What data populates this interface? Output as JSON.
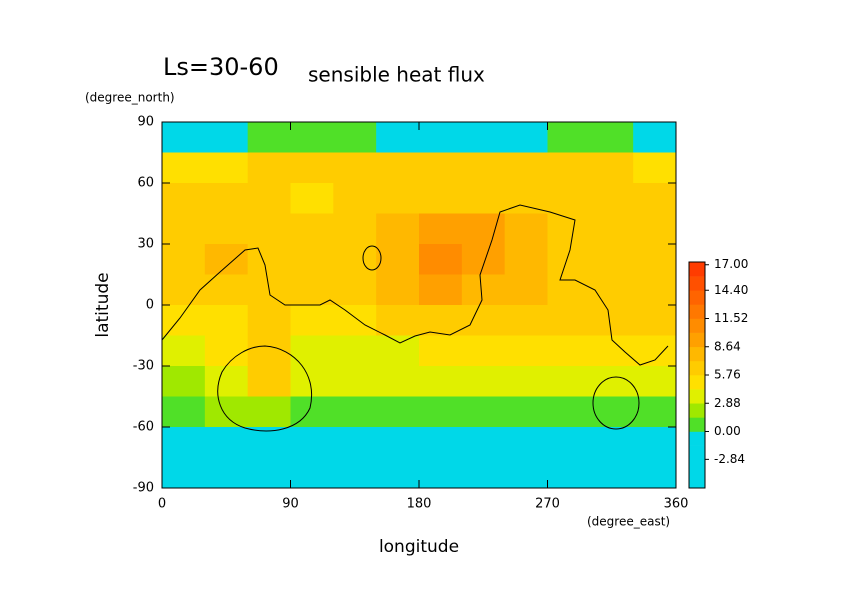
{
  "chart_data": {
    "type": "contour",
    "title": "Ls=30-60",
    "subtitle": "sensible heat flux",
    "ylabel": "latitude",
    "xlabel": "longitude",
    "yunit": "(degree_north)",
    "xunit": "(degree_east)",
    "xlim": [
      0,
      360
    ],
    "xticks": [
      0,
      90,
      180,
      270,
      360
    ],
    "ylim": [
      -90,
      90
    ],
    "yticks": [
      -90,
      -60,
      -30,
      0,
      30,
      60,
      90
    ],
    "x": [
      15,
      45,
      75,
      105,
      135,
      165,
      195,
      225,
      255,
      285,
      315,
      345
    ],
    "y": [
      82.5,
      67.5,
      52.5,
      37.5,
      22.5,
      7.5,
      -7.5,
      -22.5,
      -37.5,
      -52.5,
      -67.5,
      -82.5
    ],
    "z": [
      [
        -1,
        -1,
        1,
        1,
        1,
        -1,
        -1,
        -1,
        -1,
        1,
        1,
        -1
      ],
      [
        5,
        5,
        6,
        6,
        6,
        6,
        6,
        6,
        7,
        7,
        6,
        5
      ],
      [
        6,
        6,
        6,
        5,
        6,
        6,
        6,
        7,
        6,
        6,
        6,
        6
      ],
      [
        7,
        6,
        7,
        6,
        7,
        8,
        9,
        10,
        8,
        7,
        7,
        7
      ],
      [
        7,
        8,
        7,
        6,
        7,
        8,
        11,
        9,
        8,
        7,
        7,
        6
      ],
      [
        6,
        7,
        7,
        6,
        7,
        8,
        9,
        8,
        8,
        7,
        7,
        6
      ],
      [
        5,
        5,
        6,
        5,
        5,
        6,
        6,
        7,
        7,
        6,
        6,
        6
      ],
      [
        4,
        5,
        7,
        4,
        4,
        4,
        5,
        5,
        5,
        5,
        5,
        5
      ],
      [
        2,
        4,
        6,
        3,
        3,
        3,
        3,
        3,
        3,
        3,
        4,
        3
      ],
      [
        1,
        2,
        2,
        1,
        1,
        1,
        1,
        1,
        1,
        1,
        1,
        1
      ],
      [
        -2,
        -2,
        -2,
        -2,
        -2,
        -2,
        -2,
        -2,
        -2,
        -2,
        -2,
        -2
      ],
      [
        -2,
        -2,
        -2,
        -2,
        -2,
        -2,
        -2,
        -2,
        -2,
        -2,
        -2,
        -2
      ]
    ],
    "colorbar": {
      "range": [
        -5.76,
        17.28
      ],
      "colors": [
        "#00d8e8",
        "#00d8e8",
        "#00d8e8",
        "#00d8e8",
        "#50e028",
        "#a0e800",
        "#e0f000",
        "#ffe000",
        "#ffcc00",
        "#ffb800",
        "#ffa000",
        "#ff8c00",
        "#ff7800",
        "#ff6400",
        "#ff5000",
        "#ff3c00"
      ],
      "ticks": [
        {
          "value": 17,
          "label": "17.00"
        },
        {
          "value": 14.4,
          "label": "14.40"
        },
        11.52,
        8.64,
        5.76,
        2.88,
        {
          "value": 0,
          "label": "0.00"
        },
        -2.84
      ]
    }
  }
}
